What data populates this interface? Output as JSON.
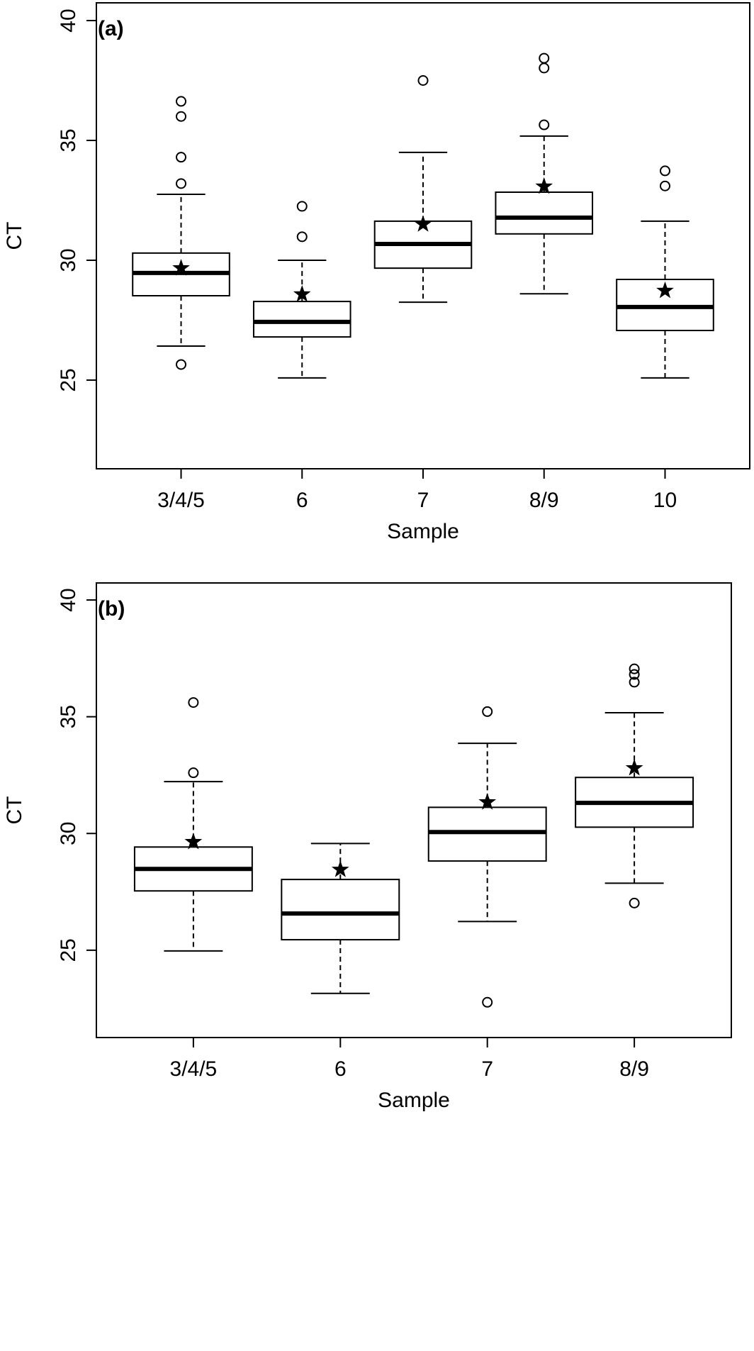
{
  "chart_data": [
    {
      "type": "box",
      "label": "(a)",
      "xlabel": "Sample",
      "ylabel": "CT",
      "categories": [
        "3/4/5",
        "6",
        "7",
        "8/9",
        "10"
      ],
      "ylim": [
        21.3,
        40.74
      ],
      "yticks": [
        25,
        30,
        35,
        40
      ],
      "boxes": [
        {
          "whisker_low": 26.42,
          "q1": 28.52,
          "median": 29.47,
          "q3": 30.3,
          "whisker_high": 32.75,
          "mean": 29.67,
          "outliers": [
            36.63,
            36.0,
            34.3,
            33.2,
            25.65
          ]
        },
        {
          "whisker_low": 25.09,
          "q1": 26.8,
          "median": 27.43,
          "q3": 28.28,
          "whisker_high": 30.0,
          "mean": 28.58,
          "outliers": [
            32.25,
            30.98
          ]
        },
        {
          "whisker_low": 28.25,
          "q1": 29.67,
          "median": 30.68,
          "q3": 31.63,
          "whisker_high": 34.5,
          "mean": 31.5,
          "outliers": [
            37.5
          ]
        },
        {
          "whisker_low": 28.6,
          "q1": 31.1,
          "median": 31.78,
          "q3": 32.84,
          "whisker_high": 35.18,
          "mean": 33.08,
          "outliers": [
            38.43,
            38.02,
            35.65
          ]
        },
        {
          "whisker_low": 25.09,
          "q1": 27.07,
          "median": 28.05,
          "q3": 29.2,
          "whisker_high": 31.63,
          "mean": 28.73,
          "outliers": [
            33.73,
            33.1
          ]
        }
      ]
    },
    {
      "type": "box",
      "label": "(b)",
      "xlabel": "Sample",
      "ylabel": "CT",
      "categories": [
        "3/4/5",
        "6",
        "7",
        "8/9"
      ],
      "ylim": [
        21.26,
        40.73
      ],
      "yticks": [
        25,
        30,
        35,
        40
      ],
      "boxes": [
        {
          "whisker_low": 24.97,
          "q1": 27.54,
          "median": 28.48,
          "q3": 29.42,
          "whisker_high": 32.22,
          "mean": 29.64,
          "outliers": [
            35.61,
            32.6
          ]
        },
        {
          "whisker_low": 23.15,
          "q1": 25.45,
          "median": 26.57,
          "q3": 28.03,
          "whisker_high": 29.57,
          "mean": 28.45,
          "outliers": []
        },
        {
          "whisker_low": 26.23,
          "q1": 28.82,
          "median": 30.06,
          "q3": 31.12,
          "whisker_high": 33.86,
          "mean": 31.34,
          "outliers": [
            35.22,
            22.77
          ]
        },
        {
          "whisker_low": 27.87,
          "q1": 30.27,
          "median": 31.31,
          "q3": 32.4,
          "whisker_high": 35.17,
          "mean": 32.8,
          "outliers": [
            37.05,
            36.81,
            36.48,
            27.02
          ]
        }
      ]
    }
  ]
}
